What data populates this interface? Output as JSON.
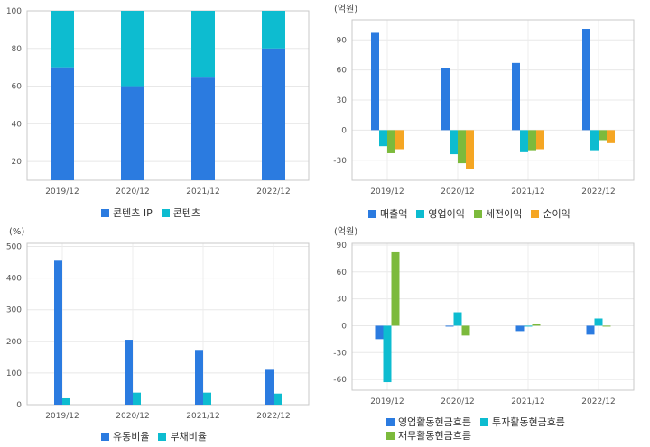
{
  "chart_data": [
    {
      "id": "p1",
      "type": "bar",
      "stacked": true,
      "unit": "",
      "categories": [
        "2019/12",
        "2020/12",
        "2021/12",
        "2022/12"
      ],
      "series": [
        {
          "name": "콘텐츠 IP",
          "color": "#2b7be0",
          "values": [
            70,
            60,
            65,
            80
          ]
        },
        {
          "name": "콘텐츠",
          "color": "#0dbcd0",
          "values": [
            30,
            40,
            35,
            20
          ]
        }
      ],
      "ylim": [
        10,
        100
      ],
      "yticks": [
        20,
        40,
        60,
        80,
        100
      ],
      "grid": true,
      "legend_position": "bottom"
    },
    {
      "id": "p2",
      "type": "bar",
      "unit": "(억원)",
      "categories": [
        "2019/12",
        "2020/12",
        "2021/12",
        "2022/12"
      ],
      "series": [
        {
          "name": "매출액",
          "color": "#2b7be0",
          "values": [
            97,
            62,
            67,
            101
          ]
        },
        {
          "name": "영업이익",
          "color": "#0dbcd0",
          "values": [
            -16,
            -24,
            -22,
            -20
          ]
        },
        {
          "name": "세전이익",
          "color": "#7cba3c",
          "values": [
            -23,
            -33,
            -20,
            -10
          ]
        },
        {
          "name": "순이익",
          "color": "#f5a623",
          "values": [
            -19,
            -39,
            -19,
            -13
          ]
        }
      ],
      "ylim": [
        -50,
        110
      ],
      "yticks": [
        -30,
        0,
        30,
        60,
        90
      ],
      "grid": true,
      "legend_position": "bottom"
    },
    {
      "id": "p3",
      "type": "bar",
      "unit": "(%)",
      "categories": [
        "2019/12",
        "2020/12",
        "2021/12",
        "2022/12"
      ],
      "series": [
        {
          "name": "유동비율",
          "color": "#2b7be0",
          "values": [
            455,
            205,
            173,
            110
          ]
        },
        {
          "name": "부채비율",
          "color": "#0dbcd0",
          "values": [
            20,
            38,
            38,
            35
          ]
        }
      ],
      "ylim": [
        0,
        510
      ],
      "yticks": [
        0,
        100,
        200,
        300,
        400,
        500
      ],
      "grid": true,
      "legend_position": "bottom"
    },
    {
      "id": "p4",
      "type": "bar",
      "unit": "(억원)",
      "categories": [
        "2019/12",
        "2020/12",
        "2021/12",
        "2022/12"
      ],
      "series": [
        {
          "name": "영업활동현금흐름",
          "color": "#2b7be0",
          "values": [
            -15,
            -1,
            -6,
            -10
          ]
        },
        {
          "name": "투자활동현금흐름",
          "color": "#0dbcd0",
          "values": [
            -63,
            15,
            -1,
            8
          ]
        },
        {
          "name": "재무활동현금흐름",
          "color": "#7cba3c",
          "values": [
            82,
            -11,
            2,
            -1
          ]
        }
      ],
      "ylim": [
        -72,
        92
      ],
      "yticks": [
        -60,
        -30,
        0,
        30,
        60,
        90
      ],
      "grid": true,
      "legend_position": "bottom"
    }
  ]
}
